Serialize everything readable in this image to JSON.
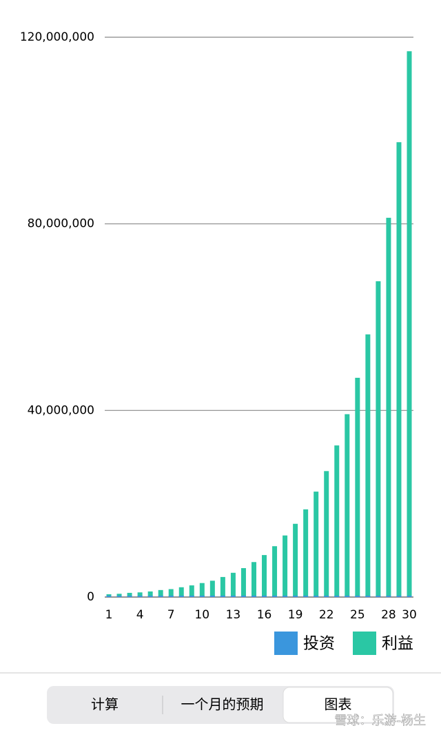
{
  "chart_data": {
    "type": "bar",
    "categories": [
      "1",
      null,
      null,
      "4",
      null,
      null,
      "7",
      null,
      null,
      "10",
      null,
      null,
      "13",
      null,
      null,
      "16",
      null,
      null,
      "19",
      null,
      null,
      "22",
      null,
      null,
      "25",
      null,
      null,
      "28",
      null,
      "30"
    ],
    "series": [
      {
        "name": "投资",
        "color": "#3a96dd",
        "values": [
          300000,
          300000,
          300000,
          300000,
          300000,
          300000,
          300000,
          300000,
          300000,
          300000,
          300000,
          300000,
          300000,
          300000,
          300000,
          300000,
          300000,
          300000,
          300000,
          300000,
          300000,
          300000,
          300000,
          300000,
          300000,
          300000,
          300000,
          300000,
          300000,
          300000
        ]
      },
      {
        "name": "利益",
        "color": "#2ac7a4",
        "values": [
          600000,
          700000,
          900000,
          1000000,
          1200000,
          1500000,
          1700000,
          2100000,
          2500000,
          3000000,
          3500000,
          4300000,
          5200000,
          6200000,
          7500000,
          9000000,
          10900000,
          13200000,
          15700000,
          18800000,
          22600000,
          27000000,
          32500000,
          39200000,
          47000000,
          56300000,
          67700000,
          81300000,
          97500000,
          117000000
        ]
      }
    ],
    "ylim": [
      0,
      120000000
    ],
    "yticks": [
      0,
      {
        "value": 40000000,
        "label": "40,000,000"
      },
      {
        "value": 80000000,
        "label": "80,000,000"
      },
      {
        "value": 120000000,
        "label": "120,000,000"
      }
    ],
    "grid": true,
    "legend": "bottom-right"
  },
  "tabs": [
    "计算",
    "一个月的预期",
    "图表"
  ],
  "selected_tab": 2,
  "watermark": "雪球：乐游-杨生"
}
